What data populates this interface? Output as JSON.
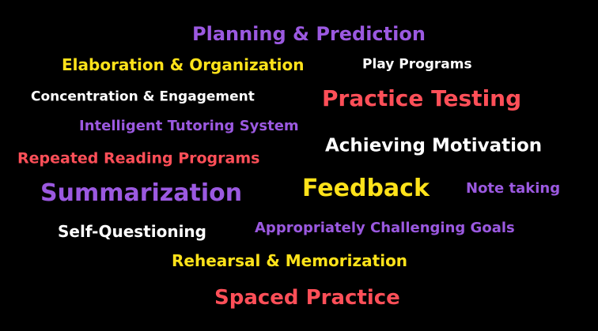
{
  "colors": {
    "background": "#000000",
    "purple": "#9b59e0",
    "yellow": "#ffe21a",
    "white": "#ffffff",
    "red": "#ff4f58"
  },
  "words": [
    {
      "text": "Planning & Prediction"
    },
    {
      "text": "Elaboration & Organization"
    },
    {
      "text": "Play Programs"
    },
    {
      "text": "Concentration & Engagement"
    },
    {
      "text": "Practice Testing"
    },
    {
      "text": "Intelligent Tutoring System"
    },
    {
      "text": "Achieving Motivation"
    },
    {
      "text": "Repeated Reading Programs"
    },
    {
      "text": "Summarization"
    },
    {
      "text": "Feedback"
    },
    {
      "text": "Note taking"
    },
    {
      "text": "Self-Questioning"
    },
    {
      "text": "Appropriately Challenging Goals"
    },
    {
      "text": "Rehearsal & Memorization"
    },
    {
      "text": "Spaced Practice"
    }
  ]
}
